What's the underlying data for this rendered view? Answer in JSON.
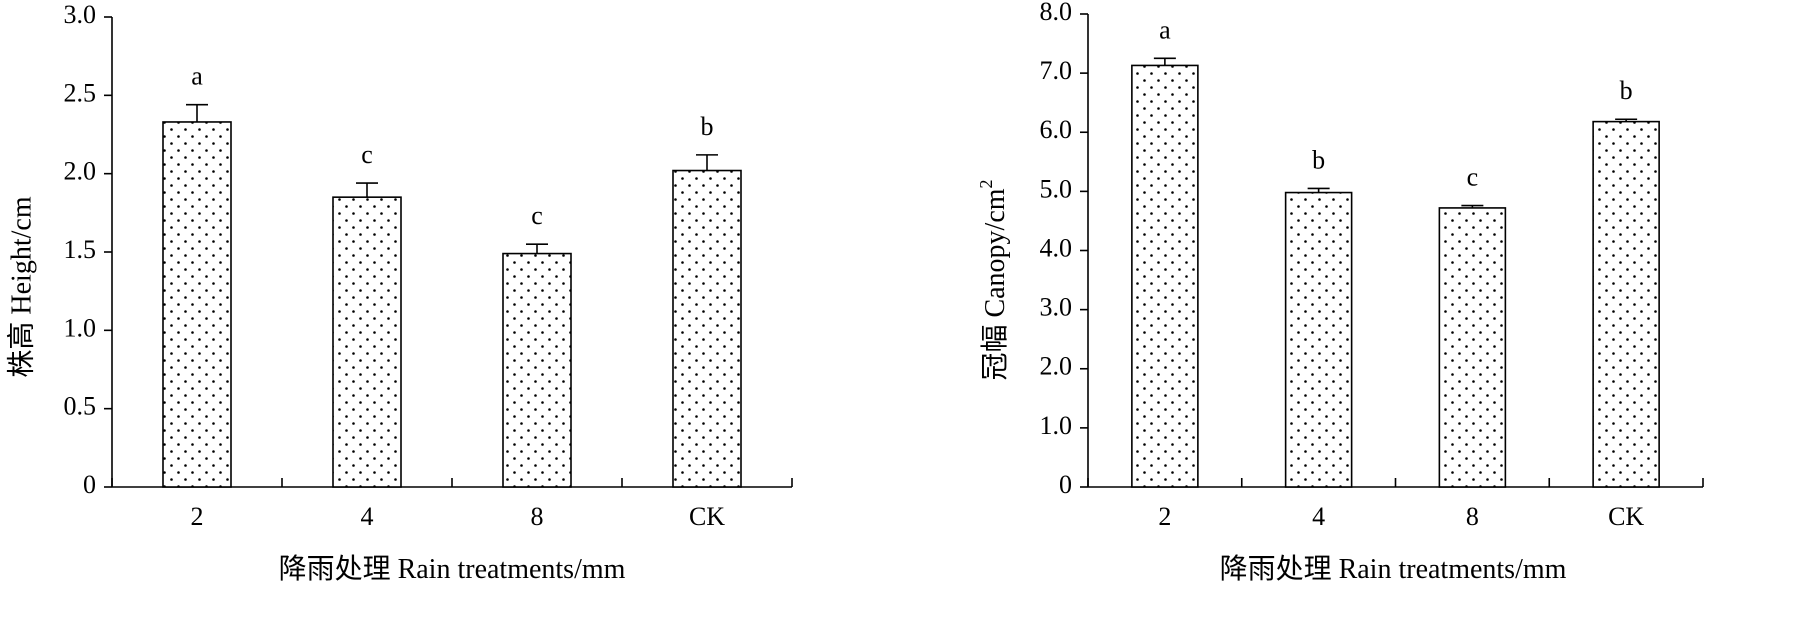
{
  "chart_data": [
    {
      "type": "bar",
      "categories": [
        "2",
        "4",
        "8",
        "CK"
      ],
      "values": [
        2.33,
        1.85,
        1.49,
        2.02
      ],
      "errors": [
        0.11,
        0.09,
        0.06,
        0.1
      ],
      "significance": [
        "a",
        "c",
        "c",
        "b"
      ],
      "xlabel": "降雨处理 Rain treatments/mm",
      "ylabel": "株高 Height/cm",
      "ylim": [
        0,
        3.0
      ],
      "yticks": [
        "0",
        "0.5",
        "1.0",
        "1.5",
        "2.0",
        "2.5",
        "3.0"
      ],
      "ytick_values": [
        0,
        0.5,
        1.0,
        1.5,
        2.0,
        2.5,
        3.0
      ],
      "bar_pattern": "dotted",
      "grid": false
    },
    {
      "type": "bar",
      "categories": [
        "2",
        "4",
        "8",
        "CK"
      ],
      "values": [
        7.13,
        4.98,
        4.72,
        6.18
      ],
      "errors": [
        0.12,
        0.07,
        0.04,
        0.04
      ],
      "significance": [
        "a",
        "b",
        "c",
        "b"
      ],
      "xlabel": "降雨处理 Rain treatments/mm",
      "ylabel": "冠幅 Canopy/cm",
      "ylabel_superscript": "2",
      "ylim": [
        0,
        8.0
      ],
      "yticks": [
        "0",
        "1.0",
        "2.0",
        "3.0",
        "4.0",
        "5.0",
        "6.0",
        "7.0",
        "8.0"
      ],
      "ytick_values": [
        0,
        1,
        2,
        3,
        4,
        5,
        6,
        7,
        8
      ],
      "bar_pattern": "dotted",
      "grid": false
    }
  ]
}
